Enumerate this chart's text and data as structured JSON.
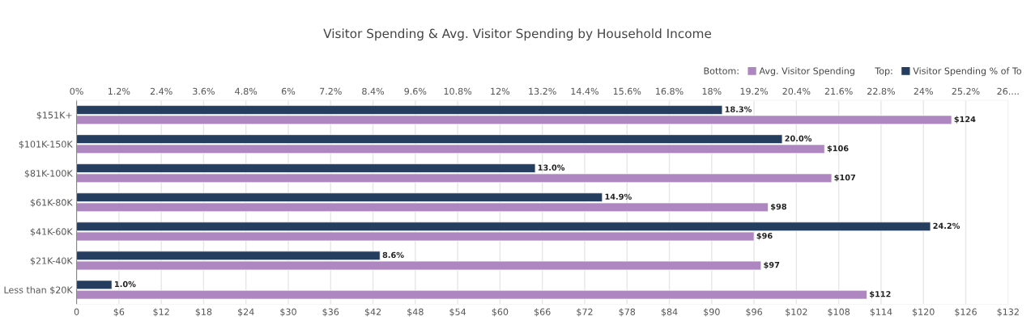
{
  "chart_data": {
    "type": "bar",
    "orientation": "horizontal",
    "title": "Visitor Spending & Avg. Visitor Spending by Household Income",
    "categories": [
      "$151K+",
      "$101K-150K",
      "$81K-100K",
      "$61K-80K",
      "$41K-60K",
      "$21K-40K",
      "Less than $20K"
    ],
    "series": [
      {
        "name": "Visitor Spending % of To",
        "color": "#253d5e",
        "axis": "x2",
        "values": [
          18.3,
          20.0,
          13.0,
          14.9,
          24.2,
          8.6,
          1.0
        ],
        "value_labels": [
          "18.3%",
          "20.0%",
          "13.0%",
          "14.9%",
          "24.2%",
          "8.6%",
          "1.0%"
        ]
      },
      {
        "name": "Avg. Visitor Spending",
        "color": "#ae86c0",
        "values": [
          124,
          106,
          107,
          98,
          96,
          97,
          112
        ],
        "value_labels": [
          "$124",
          "$106",
          "$107",
          "$98",
          "$96",
          "$97",
          "$112"
        ]
      }
    ],
    "xlim": [
      0,
      132
    ],
    "xticks": [
      {
        "value": 0,
        "label": "0"
      },
      {
        "value": 6,
        "label": "$6"
      },
      {
        "value": 12,
        "label": "$12"
      },
      {
        "value": 18,
        "label": "$18"
      },
      {
        "value": 24,
        "label": "$24"
      },
      {
        "value": 30,
        "label": "$30"
      },
      {
        "value": 36,
        "label": "$36"
      },
      {
        "value": 42,
        "label": "$42"
      },
      {
        "value": 48,
        "label": "$48"
      },
      {
        "value": 54,
        "label": "$54"
      },
      {
        "value": 60,
        "label": "$60"
      },
      {
        "value": 66,
        "label": "$66"
      },
      {
        "value": 72,
        "label": "$72"
      },
      {
        "value": 78,
        "label": "$78"
      },
      {
        "value": 84,
        "label": "$84"
      },
      {
        "value": 90,
        "label": "$90"
      },
      {
        "value": 96,
        "label": "$96"
      },
      {
        "value": 102,
        "label": "$102"
      },
      {
        "value": 108,
        "label": "$108"
      },
      {
        "value": 114,
        "label": "$114"
      },
      {
        "value": 120,
        "label": "$120"
      },
      {
        "value": 126,
        "label": "$126"
      },
      {
        "value": 132,
        "label": "$132"
      }
    ],
    "x2lim": [
      0,
      26.4
    ],
    "x2ticks": [
      {
        "value": 0,
        "label": "0%"
      },
      {
        "value": 1.2,
        "label": "1.2%"
      },
      {
        "value": 2.4,
        "label": "2.4%"
      },
      {
        "value": 3.6,
        "label": "3.6%"
      },
      {
        "value": 4.8,
        "label": "4.8%"
      },
      {
        "value": 6,
        "label": "6%"
      },
      {
        "value": 7.2,
        "label": "7.2%"
      },
      {
        "value": 8.4,
        "label": "8.4%"
      },
      {
        "value": 9.6,
        "label": "9.6%"
      },
      {
        "value": 10.8,
        "label": "10.8%"
      },
      {
        "value": 12,
        "label": "12%"
      },
      {
        "value": 13.2,
        "label": "13.2%"
      },
      {
        "value": 14.4,
        "label": "14.4%"
      },
      {
        "value": 15.6,
        "label": "15.6%"
      },
      {
        "value": 16.8,
        "label": "16.8%"
      },
      {
        "value": 18,
        "label": "18%"
      },
      {
        "value": 19.2,
        "label": "19.2%"
      },
      {
        "value": 20.4,
        "label": "20.4%"
      },
      {
        "value": 21.6,
        "label": "21.6%"
      },
      {
        "value": 22.8,
        "label": "22.8%"
      },
      {
        "value": 24,
        "label": "24%"
      },
      {
        "value": 25.2,
        "label": "25.2%"
      },
      {
        "value": 26.4,
        "label": "26...."
      }
    ],
    "annotations": [
      "Bottom:",
      "Top:"
    ],
    "grid": "x",
    "legend": "top right"
  }
}
